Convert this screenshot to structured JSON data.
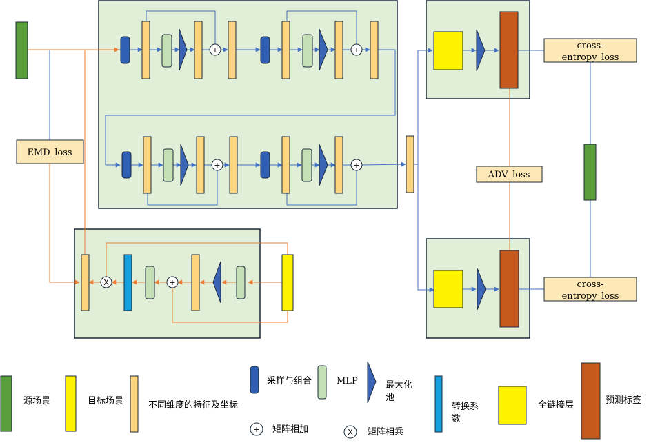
{
  "losses": {
    "emd": "EMD_loss",
    "adv": "ADV_loss",
    "ce_top": [
      "cross-",
      "entropy_loss"
    ],
    "ce_bottom": [
      "cross-",
      "entropy_loss"
    ]
  },
  "operators": {
    "add": "+",
    "multiply": "X"
  },
  "legend": {
    "source_scene": "源场景",
    "target_scene": "目标场景",
    "features": "不同维度的特征及坐标",
    "sample_group": "采样与组合",
    "mlp": "MLP",
    "maxpool": [
      "最大化",
      "池"
    ],
    "transform": [
      "转换系",
      "数"
    ],
    "fc": "全链接层",
    "pred": "预测标签",
    "matrix_add": "矩阵相加",
    "matrix_mul": "矩阵相乘"
  },
  "colors": {
    "panel_fill": "#e1eed8",
    "panel_stroke": "#1c2a3a",
    "source_green": "#5a9e3c",
    "target_yellow": "#fff200",
    "feature_orange": "#fdd57e",
    "sample_blue": "#2f5fb3",
    "mlp_green": "#c5e0b4",
    "pool_blue": "#3b64b5",
    "transform_cyan": "#12a0e0",
    "pred_brown": "#c65a1e",
    "loss_box": "#fde9b8",
    "blue_line": "#4472c4",
    "orange_line": "#ed7d31"
  }
}
